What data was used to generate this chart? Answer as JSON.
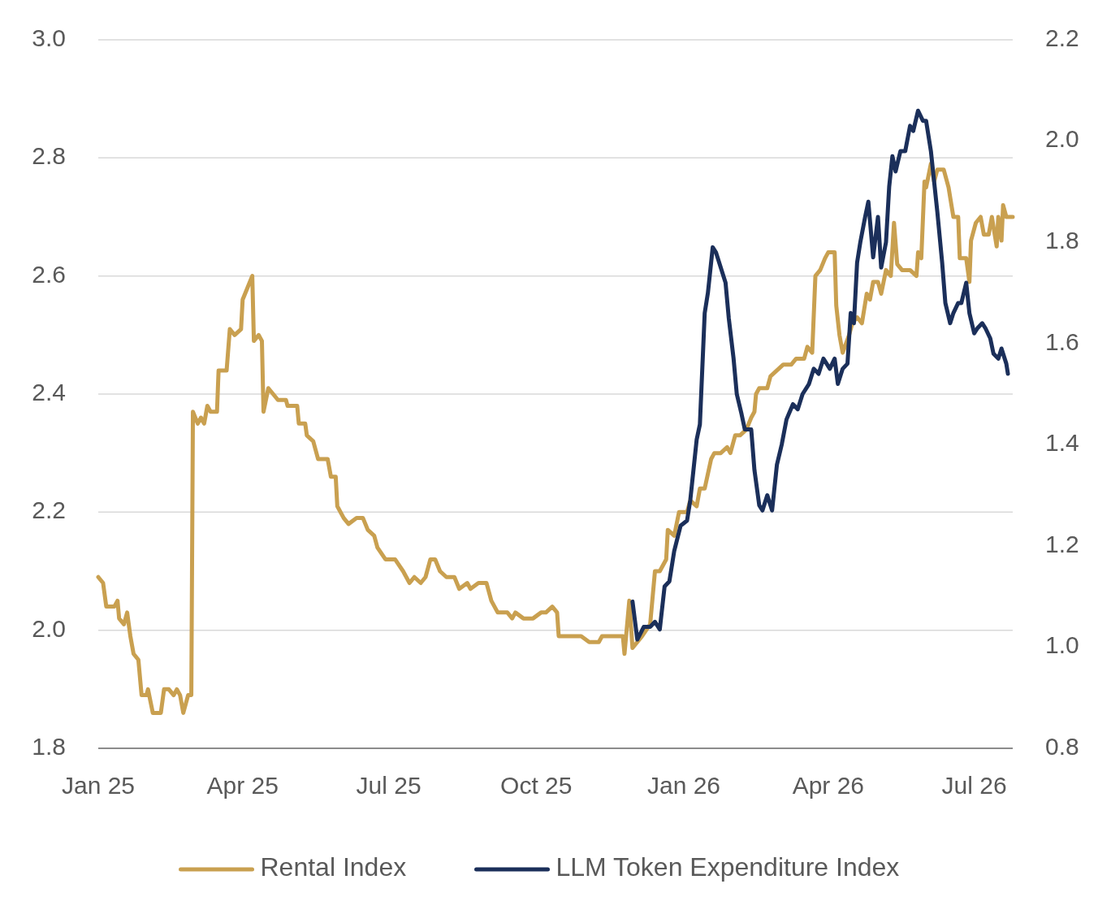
{
  "chart_data": {
    "type": "line",
    "xlim": [
      "2025-01-01",
      "2026-07-25"
    ],
    "xticks": [
      {
        "value": "2025-01-01",
        "label": "Jan 25"
      },
      {
        "value": "2025-04-01",
        "label": "Apr 25"
      },
      {
        "value": "2025-07-01",
        "label": "Jul 25"
      },
      {
        "value": "2025-10-01",
        "label": "Oct 25"
      },
      {
        "value": "2026-01-01",
        "label": "Jan 26"
      },
      {
        "value": "2026-04-01",
        "label": "Apr 26"
      },
      {
        "value": "2026-07-01",
        "label": "Jul 26"
      }
    ],
    "ylim": [
      1.8,
      3.0
    ],
    "yticks": [
      1.8,
      {
        "value": 2.0,
        "label": "2.0"
      },
      2.2,
      2.4,
      2.6,
      2.8,
      {
        "value": 3.0,
        "label": "3.0"
      }
    ],
    "y2lim": [
      0.8,
      2.2
    ],
    "y2ticks": [
      0.8,
      {
        "value": 1.0,
        "label": "1.0"
      },
      1.2,
      1.4,
      1.6,
      1.8,
      {
        "value": 2.0,
        "label": "2.0"
      },
      2.2
    ],
    "grid": "y",
    "legend": "bottom",
    "line_style": "solid",
    "marker": "none",
    "series": [
      {
        "name": "Rental Index",
        "color": "#c9a050",
        "x": [
          "2025-01-01",
          "2025-01-04",
          "2025-01-06",
          "2025-01-11",
          "2025-01-13",
          "2025-01-14",
          "2025-01-17",
          "2025-01-19",
          "2025-01-21",
          "2025-01-23",
          "2025-01-26",
          "2025-01-28",
          "2025-01-31",
          "2025-02-01",
          "2025-02-04",
          "2025-02-09",
          "2025-02-11",
          "2025-02-14",
          "2025-02-17",
          "2025-02-19",
          "2025-02-21",
          "2025-02-23",
          "2025-02-26",
          "2025-02-28",
          "2025-03-01",
          "2025-03-04",
          "2025-03-06",
          "2025-03-08",
          "2025-03-10",
          "2025-03-12",
          "2025-03-16",
          "2025-03-17",
          "2025-03-22",
          "2025-03-24",
          "2025-03-27",
          "2025-03-31",
          "2025-04-01",
          "2025-04-04",
          "2025-04-07",
          "2025-04-08",
          "2025-04-11",
          "2025-04-13",
          "2025-04-14",
          "2025-04-17",
          "2025-04-20",
          "2025-04-23",
          "2025-04-28",
          "2025-04-29",
          "2025-05-05",
          "2025-05-06",
          "2025-05-10",
          "2025-05-11",
          "2025-05-15",
          "2025-05-18",
          "2025-05-24",
          "2025-05-26",
          "2025-05-29",
          "2025-05-30",
          "2025-06-03",
          "2025-06-06",
          "2025-06-11",
          "2025-06-15",
          "2025-06-18",
          "2025-06-22",
          "2025-06-24",
          "2025-06-29",
          "2025-07-05",
          "2025-07-10",
          "2025-07-14",
          "2025-07-17",
          "2025-07-21",
          "2025-07-24",
          "2025-07-27",
          "2025-07-30",
          "2025-08-02",
          "2025-08-06",
          "2025-08-11",
          "2025-08-14",
          "2025-08-19",
          "2025-08-21",
          "2025-08-26",
          "2025-08-31",
          "2025-09-03",
          "2025-09-07",
          "2025-09-13",
          "2025-09-16",
          "2025-09-18",
          "2025-09-23",
          "2025-09-29",
          "2025-10-04",
          "2025-10-07",
          "2025-10-11",
          "2025-10-14",
          "2025-10-15",
          "2025-10-20",
          "2025-10-24",
          "2025-10-29",
          "2025-11-03",
          "2025-11-09",
          "2025-11-11",
          "2025-11-20",
          "2025-11-24",
          "2025-11-25",
          "2025-11-28",
          "2025-11-30",
          "2025-12-06",
          "2025-12-11",
          "2025-12-14",
          "2025-12-17",
          "2025-12-21",
          "2025-12-22",
          "2025-12-26",
          "2025-12-29",
          "2026-01-03",
          "2026-01-05",
          "2026-01-09",
          "2026-01-11",
          "2026-01-14",
          "2026-01-18",
          "2026-01-20",
          "2026-01-24",
          "2026-01-28",
          "2026-01-30",
          "2026-02-02",
          "2026-02-05",
          "2026-02-09",
          "2026-02-12",
          "2026-02-14",
          "2026-02-15",
          "2026-02-17",
          "2026-02-22",
          "2026-02-24",
          "2026-02-28",
          "2026-03-04",
          "2026-03-09",
          "2026-03-12",
          "2026-03-17",
          "2026-03-19",
          "2026-03-22",
          "2026-03-24",
          "2026-03-27",
          "2026-03-30",
          "2026-04-01",
          "2026-04-05",
          "2026-04-06",
          "2026-04-08",
          "2026-04-10",
          "2026-04-14",
          "2026-04-16",
          "2026-04-19",
          "2026-04-22",
          "2026-04-25",
          "2026-04-27",
          "2026-04-29",
          "2026-05-02",
          "2026-05-04",
          "2026-05-07",
          "2026-05-10",
          "2026-05-12",
          "2026-05-14",
          "2026-05-17",
          "2026-05-22",
          "2026-05-26",
          "2026-05-27",
          "2026-05-29",
          "2026-05-31",
          "2026-06-01",
          "2026-06-04",
          "2026-06-06",
          "2026-06-08",
          "2026-06-12",
          "2026-06-15",
          "2026-06-18",
          "2026-06-21",
          "2026-06-22",
          "2026-06-26",
          "2026-06-28",
          "2026-06-29",
          "2026-07-02",
          "2026-07-05",
          "2026-07-07",
          "2026-07-10",
          "2026-07-12",
          "2026-07-15",
          "2026-07-16",
          "2026-07-18",
          "2026-07-19",
          "2026-07-21",
          "2026-07-25"
        ],
        "values": [
          2.09,
          2.08,
          2.04,
          2.04,
          2.05,
          2.02,
          2.01,
          2.03,
          1.99,
          1.96,
          1.95,
          1.89,
          1.89,
          1.9,
          1.86,
          1.86,
          1.9,
          1.9,
          1.89,
          1.9,
          1.89,
          1.86,
          1.89,
          1.89,
          2.37,
          2.35,
          2.36,
          2.35,
          2.38,
          2.37,
          2.37,
          2.44,
          2.44,
          2.51,
          2.5,
          2.51,
          2.56,
          2.58,
          2.6,
          2.49,
          2.5,
          2.49,
          2.37,
          2.41,
          2.4,
          2.39,
          2.39,
          2.38,
          2.38,
          2.35,
          2.35,
          2.33,
          2.32,
          2.29,
          2.29,
          2.26,
          2.26,
          2.21,
          2.19,
          2.18,
          2.19,
          2.19,
          2.17,
          2.16,
          2.14,
          2.12,
          2.12,
          2.1,
          2.08,
          2.09,
          2.08,
          2.09,
          2.12,
          2.12,
          2.1,
          2.09,
          2.09,
          2.07,
          2.08,
          2.07,
          2.08,
          2.08,
          2.05,
          2.03,
          2.03,
          2.02,
          2.03,
          2.02,
          2.02,
          2.03,
          2.03,
          2.04,
          2.03,
          1.99,
          1.99,
          1.99,
          1.99,
          1.98,
          1.98,
          1.99,
          1.99,
          1.99,
          1.96,
          2.05,
          1.97,
          1.99,
          2.01,
          2.1,
          2.1,
          2.12,
          2.17,
          2.16,
          2.2,
          2.2,
          2.22,
          2.21,
          2.24,
          2.24,
          2.29,
          2.3,
          2.3,
          2.31,
          2.3,
          2.33,
          2.33,
          2.34,
          2.36,
          2.37,
          2.4,
          2.41,
          2.41,
          2.43,
          2.44,
          2.45,
          2.45,
          2.46,
          2.46,
          2.48,
          2.47,
          2.6,
          2.61,
          2.63,
          2.64,
          2.64,
          2.55,
          2.5,
          2.47,
          2.5,
          2.52,
          2.53,
          2.52,
          2.57,
          2.56,
          2.59,
          2.59,
          2.57,
          2.61,
          2.6,
          2.69,
          2.62,
          2.61,
          2.61,
          2.6,
          2.64,
          2.63,
          2.76,
          2.75,
          2.79,
          2.76,
          2.78,
          2.78,
          2.75,
          2.7,
          2.7,
          2.63,
          2.63,
          2.59,
          2.66,
          2.69,
          2.7,
          2.67,
          2.67,
          2.7,
          2.65,
          2.7,
          2.66,
          2.72,
          2.7,
          2.7
        ]
      },
      {
        "name": "LLM Token Expenditure Index",
        "color": "#1b2f5a",
        "axis": "y2",
        "x": [
          "2025-11-30",
          "2025-12-03",
          "2025-12-07",
          "2025-12-11",
          "2025-12-14",
          "2025-12-17",
          "2025-12-20",
          "2025-12-23",
          "2025-12-26",
          "2025-12-30",
          "2026-01-03",
          "2026-01-05",
          "2026-01-09",
          "2026-01-11",
          "2026-01-14",
          "2026-01-16",
          "2026-01-19",
          "2026-01-21",
          "2026-01-24",
          "2026-01-27",
          "2026-01-29",
          "2026-02-01",
          "2026-02-03",
          "2026-02-06",
          "2026-02-08",
          "2026-02-12",
          "2026-02-14",
          "2026-02-17",
          "2026-02-19",
          "2026-02-22",
          "2026-02-25",
          "2026-02-28",
          "2026-03-03",
          "2026-03-06",
          "2026-03-10",
          "2026-03-13",
          "2026-03-16",
          "2026-03-20",
          "2026-03-23",
          "2026-03-26",
          "2026-03-29",
          "2026-04-02",
          "2026-04-05",
          "2026-04-07",
          "2026-04-10",
          "2026-04-13",
          "2026-04-15",
          "2026-04-17",
          "2026-04-19",
          "2026-04-21",
          "2026-04-24",
          "2026-04-26",
          "2026-04-29",
          "2026-05-02",
          "2026-05-04",
          "2026-05-07",
          "2026-05-09",
          "2026-05-11",
          "2026-05-13",
          "2026-05-16",
          "2026-05-19",
          "2026-05-22",
          "2026-05-24",
          "2026-05-27",
          "2026-05-30",
          "2026-06-01",
          "2026-06-04",
          "2026-06-06",
          "2026-06-08",
          "2026-06-11",
          "2026-06-13",
          "2026-06-16",
          "2026-06-18",
          "2026-06-21",
          "2026-06-23",
          "2026-06-26",
          "2026-06-28",
          "2026-07-01",
          "2026-07-03",
          "2026-07-06",
          "2026-07-08",
          "2026-07-11",
          "2026-07-13",
          "2026-07-16",
          "2026-07-18",
          "2026-07-21",
          "2026-07-22"
        ],
        "values": [
          1.09,
          1.015,
          1.04,
          1.04,
          1.05,
          1.035,
          1.12,
          1.13,
          1.19,
          1.24,
          1.25,
          1.29,
          1.41,
          1.44,
          1.66,
          1.7,
          1.79,
          1.78,
          1.75,
          1.72,
          1.65,
          1.57,
          1.5,
          1.46,
          1.43,
          1.43,
          1.35,
          1.28,
          1.27,
          1.3,
          1.27,
          1.36,
          1.4,
          1.45,
          1.48,
          1.47,
          1.5,
          1.52,
          1.55,
          1.54,
          1.57,
          1.55,
          1.57,
          1.52,
          1.55,
          1.56,
          1.66,
          1.64,
          1.76,
          1.8,
          1.85,
          1.88,
          1.77,
          1.85,
          1.75,
          1.8,
          1.91,
          1.97,
          1.94,
          1.98,
          1.98,
          2.03,
          2.02,
          2.06,
          2.04,
          2.04,
          1.98,
          1.92,
          1.86,
          1.76,
          1.68,
          1.64,
          1.66,
          1.68,
          1.68,
          1.72,
          1.66,
          1.62,
          1.63,
          1.64,
          1.63,
          1.61,
          1.58,
          1.57,
          1.59,
          1.56,
          1.54
        ]
      }
    ]
  }
}
